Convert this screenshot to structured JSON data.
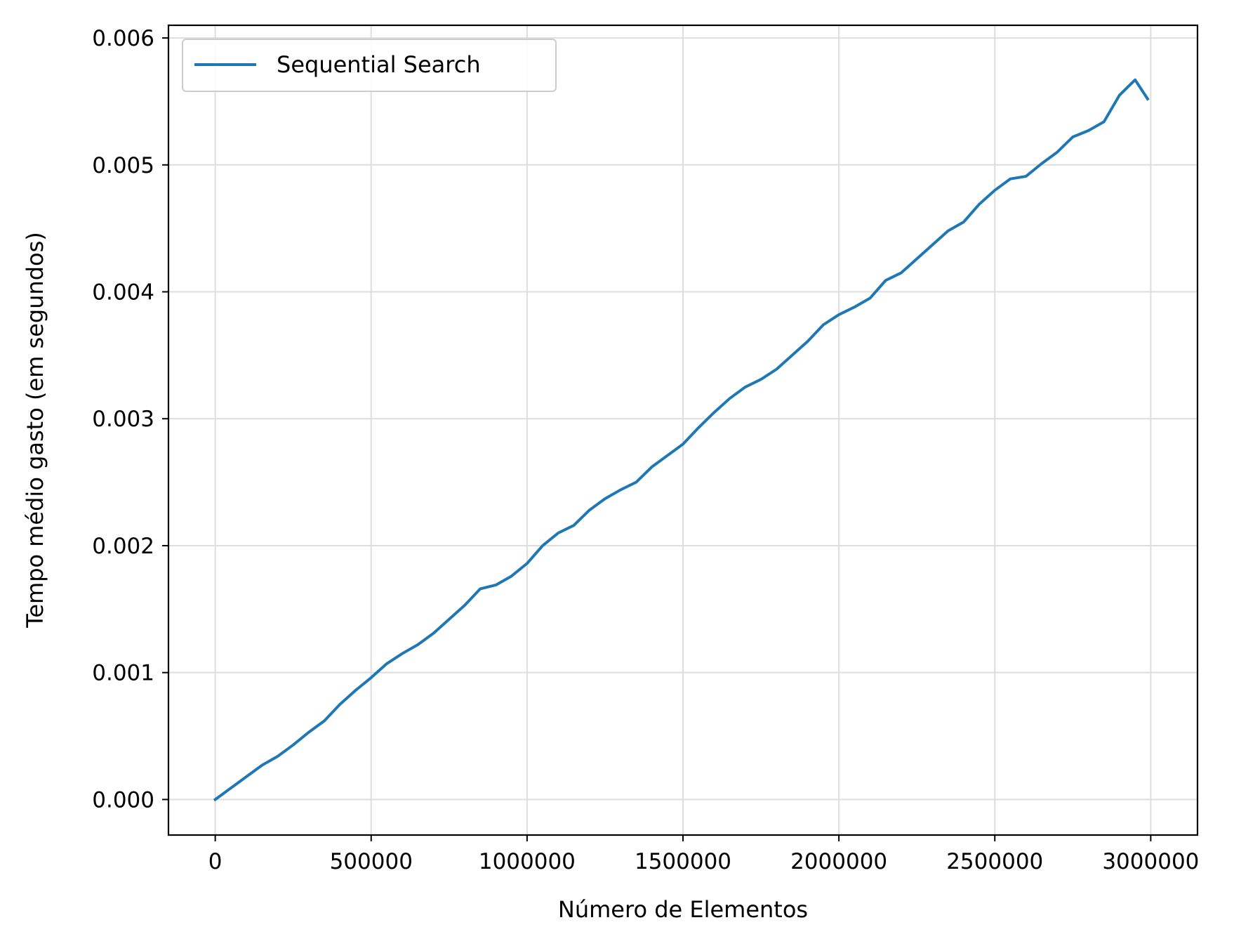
{
  "colors": {
    "line": "#1f77b4",
    "grid": "#dddddd",
    "axis": "#000000",
    "background": "#ffffff"
  },
  "chart_data": {
    "type": "line",
    "title": "",
    "xlabel": "Número de Elementos",
    "ylabel": "Tempo médio gasto (em segundos)",
    "xlim": [
      -150000,
      3150000
    ],
    "ylim": [
      -0.00028,
      0.0061
    ],
    "x_ticks": [
      0,
      500000,
      1000000,
      1500000,
      2000000,
      2500000,
      3000000
    ],
    "x_tick_labels": [
      "0",
      "500000",
      "1000000",
      "1500000",
      "2000000",
      "2500000",
      "3000000"
    ],
    "y_ticks": [
      0,
      0.001,
      0.002,
      0.003,
      0.004,
      0.005,
      0.006
    ],
    "y_tick_labels": [
      "0.000",
      "0.001",
      "0.002",
      "0.003",
      "0.004",
      "0.005",
      "0.006"
    ],
    "grid": true,
    "legend": {
      "position": "top-left",
      "entries": [
        "Sequential Search"
      ]
    },
    "series": [
      {
        "name": "Sequential Search",
        "color": "#1f77b4",
        "x": [
          0,
          50000,
          100000,
          150000,
          200000,
          250000,
          300000,
          350000,
          400000,
          450000,
          500000,
          550000,
          600000,
          650000,
          700000,
          750000,
          800000,
          850000,
          900000,
          950000,
          1000000,
          1050000,
          1100000,
          1150000,
          1200000,
          1250000,
          1300000,
          1350000,
          1400000,
          1450000,
          1500000,
          1550000,
          1600000,
          1650000,
          1700000,
          1750000,
          1800000,
          1850000,
          1900000,
          1950000,
          2000000,
          2050000,
          2100000,
          2150000,
          2200000,
          2250000,
          2300000,
          2350000,
          2400000,
          2450000,
          2500000,
          2550000,
          2600000,
          2650000,
          2700000,
          2750000,
          2800000,
          2850000,
          2900000,
          2950000,
          2990000
        ],
        "y": [
          0,
          9e-05,
          0.00018,
          0.00027,
          0.00034,
          0.00043,
          0.00053,
          0.00062,
          0.00075,
          0.00086,
          0.00096,
          0.00107,
          0.00115,
          0.00122,
          0.00131,
          0.00142,
          0.00153,
          0.00166,
          0.00169,
          0.00176,
          0.00186,
          0.002,
          0.0021,
          0.00216,
          0.00228,
          0.00237,
          0.00244,
          0.0025,
          0.00262,
          0.00271,
          0.0028,
          0.00293,
          0.00305,
          0.00316,
          0.00325,
          0.00331,
          0.00339,
          0.0035,
          0.00361,
          0.00374,
          0.00382,
          0.00388,
          0.00395,
          0.00409,
          0.00415,
          0.00426,
          0.00437,
          0.00448,
          0.00455,
          0.00469,
          0.0048,
          0.00489,
          0.00491,
          0.00501,
          0.0051,
          0.00522,
          0.00527,
          0.00534,
          0.00555,
          0.00567,
          0.00552
        ]
      }
    ]
  }
}
